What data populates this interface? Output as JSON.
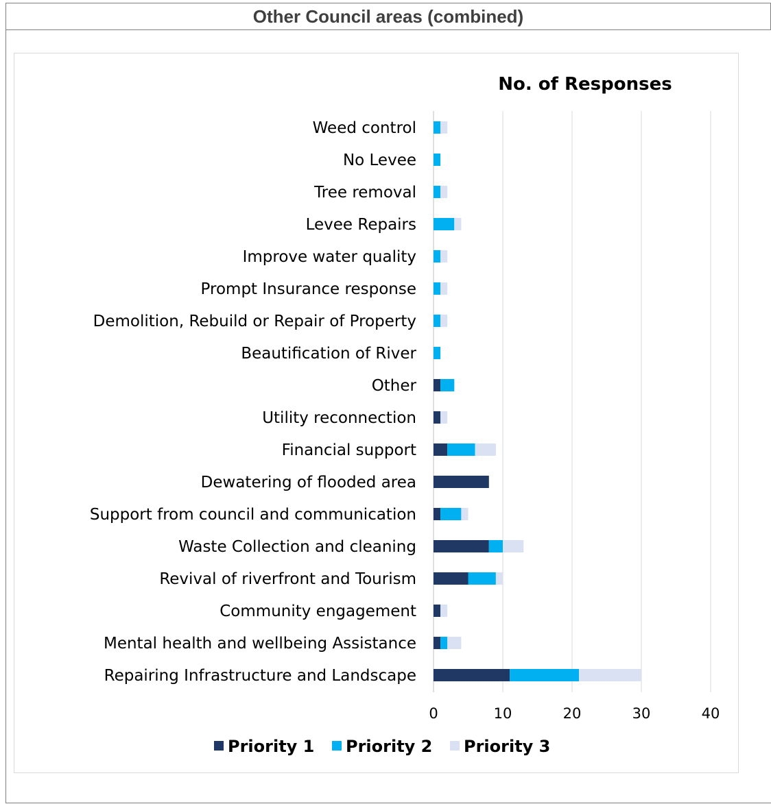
{
  "header": {
    "title": "Other Council areas (combined)"
  },
  "chart_data": {
    "type": "bar",
    "orientation": "horizontal",
    "stacked": true,
    "title": "No. of Responses",
    "xlim": [
      0,
      40
    ],
    "xticks": [
      0,
      10,
      20,
      30,
      40
    ],
    "grid": true,
    "legend_position": "bottom",
    "categories": [
      "Weed control",
      "No Levee",
      "Tree removal",
      "Levee Repairs",
      "Improve water quality",
      "Prompt Insurance response",
      "Demolition, Rebuild or Repair of Property",
      "Beautification of River",
      "Other",
      "Utility reconnection",
      "Financial support",
      "Dewatering of flooded area",
      "Support from council and communication",
      "Waste Collection and cleaning",
      "Revival of riverfront and Tourism",
      "Community engagement",
      "Mental health and wellbeing Assistance",
      "Repairing Infrastructure and Landscape"
    ],
    "series": [
      {
        "name": "Priority 1",
        "color": "#1f3864",
        "values": [
          0,
          0,
          0,
          0,
          0,
          0,
          0,
          0,
          1,
          1,
          2,
          8,
          1,
          8,
          5,
          1,
          1,
          11
        ]
      },
      {
        "name": "Priority 2",
        "color": "#00b0f0",
        "values": [
          1,
          1,
          1,
          3,
          1,
          1,
          1,
          1,
          2,
          0,
          4,
          0,
          3,
          2,
          4,
          0,
          1,
          10
        ]
      },
      {
        "name": "Priority 3",
        "color": "#d9e1f2",
        "values": [
          1,
          0,
          1,
          1,
          1,
          1,
          1,
          0,
          0,
          1,
          3,
          0,
          1,
          3,
          1,
          1,
          2,
          9
        ]
      }
    ]
  }
}
